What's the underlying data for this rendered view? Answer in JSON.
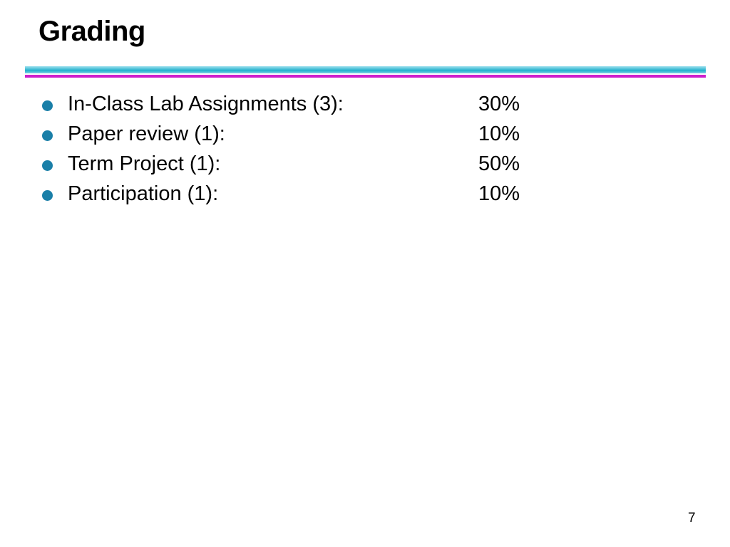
{
  "header": {
    "title": "Grading"
  },
  "items": [
    {
      "label": "In-Class Lab Assignments (3):",
      "value": "30%"
    },
    {
      "label": "Paper review (1):",
      "value": "10%"
    },
    {
      "label": "Term Project (1):",
      "value": "50%"
    },
    {
      "label": "Participation (1):",
      "value": "10%"
    }
  ],
  "footer": {
    "page_number": "7"
  }
}
